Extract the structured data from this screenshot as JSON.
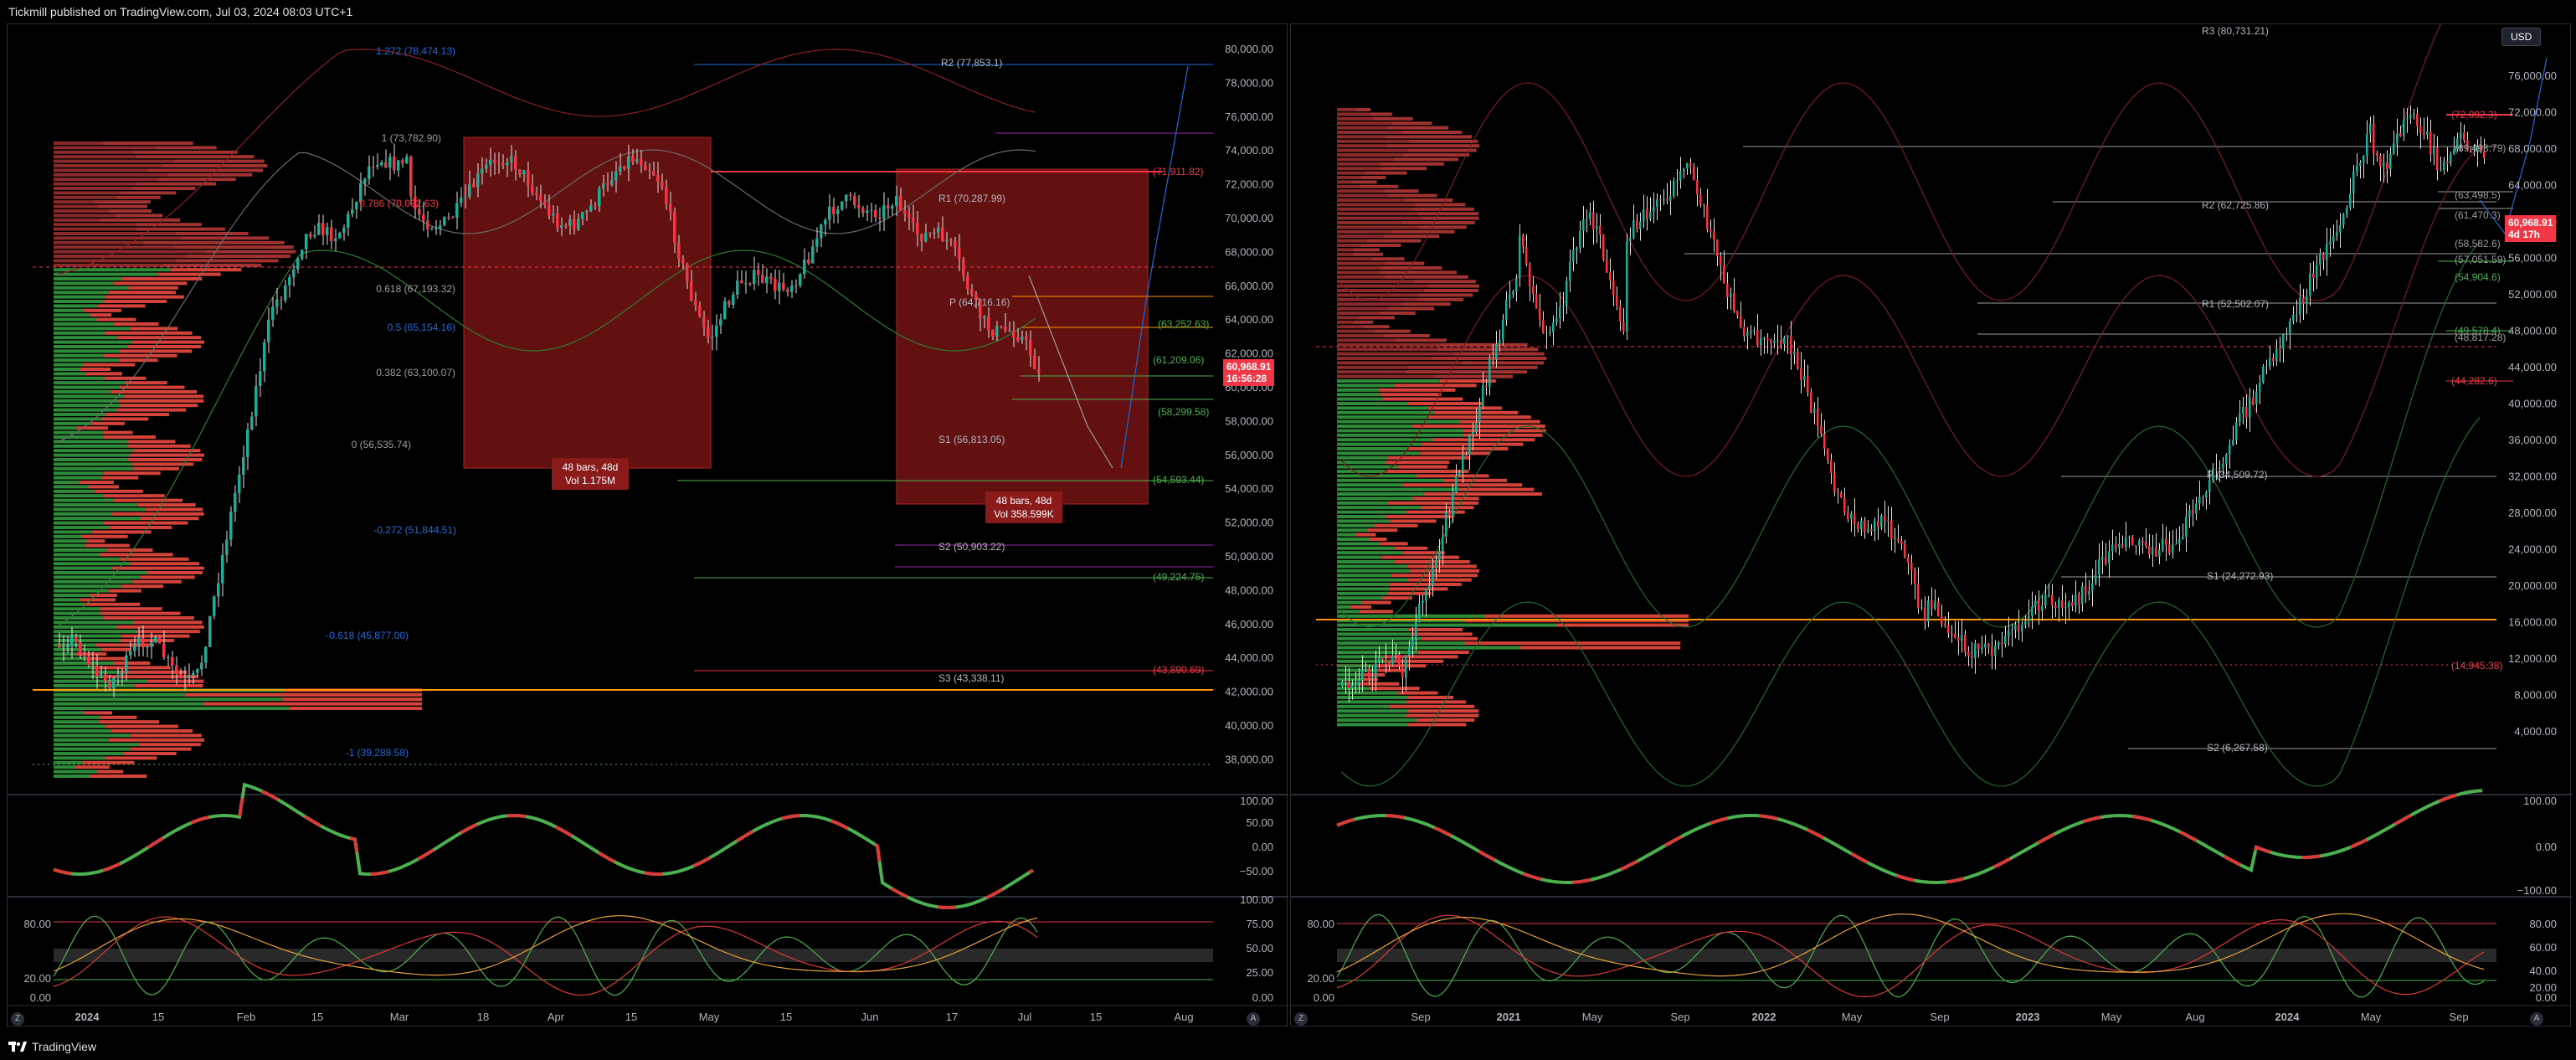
{
  "header": {
    "published": "Tickmill published on TradingView.com, Jul 03, 2024 08:03 UTC+1"
  },
  "footer": {
    "brand": "TradingView"
  },
  "colors": {
    "up": "#22ab94",
    "down": "#f23645",
    "bg": "#000000",
    "grid": "#2a2e39"
  },
  "left_panel": {
    "price_axis": [
      "80,000.00",
      "78,000.00",
      "76,000.00",
      "74,000.00",
      "72,000.00",
      "70,000.00",
      "68,000.00",
      "66,000.00",
      "64,000.00",
      "62,000.00",
      "60,000.00",
      "58,000.00",
      "56,000.00",
      "54,000.00",
      "52,000.00",
      "50,000.00",
      "48,000.00",
      "46,000.00",
      "44,000.00",
      "42,000.00",
      "40,000.00",
      "38,000.00"
    ],
    "last_price": "60,968.91",
    "countdown": "16:56:28",
    "pivots": [
      {
        "label": "R2 (77,853.1)"
      },
      {
        "label": "R1 (70,287.99)"
      },
      {
        "label": "P (64,716.16)"
      },
      {
        "label": "S1 (56,813.05)"
      },
      {
        "label": "S2 (50,903.22)"
      },
      {
        "label": "S3 (43,338.11)"
      }
    ],
    "right_levels": [
      "(71,911.82)",
      "(63,252.63)",
      "(61,209.06)",
      "(58,299.58)",
      "(54,593.44)",
      "(49,224.75)",
      "(43,890.69)"
    ],
    "fib_levels": [
      "1.272 (78,474.13)",
      "1 (73,782.90)",
      "0.786 (70,092.63)",
      "0.618 (67,193.32)",
      "0.5 (65,154.16)",
      "0.382 (63,100.07)",
      "0 (56,535.74)",
      "-0.272 (51,844.51)",
      "-0.618 (45,877.00)",
      "-1 (39,288.58)"
    ],
    "box1": {
      "line1": "48 bars, 48d",
      "line2": "Vol 1.175M"
    },
    "box2": {
      "line1": "48 bars, 48d",
      "line2": "Vol 358.599K"
    },
    "osc1_axis": [
      "100.00",
      "50.00",
      "0.00",
      "−50.00"
    ],
    "osc2_axis": [
      "100.00",
      "75.00",
      "50.00",
      "25.00",
      "0.00"
    ],
    "osc2_left": [
      "80.00",
      "20.00",
      "0.00"
    ],
    "time_axis": [
      "2024",
      "15",
      "Feb",
      "15",
      "Mar",
      "18",
      "Apr",
      "15",
      "May",
      "15",
      "Jun",
      "17",
      "Jul",
      "15",
      "Aug"
    ]
  },
  "right_panel": {
    "currency": "USD",
    "price_axis": [
      "76,000.00",
      "72,000.00",
      "68,000.00",
      "64,000.00",
      "60,000.00",
      "56,000.00",
      "52,000.00",
      "48,000.00",
      "44,000.00",
      "40,000.00",
      "36,000.00",
      "32,000.00",
      "28,000.00",
      "24,000.00",
      "20,000.00",
      "16,000.00",
      "12,000.00",
      "8,000.00",
      "4,000.00"
    ],
    "last_price": "60,968.91",
    "countdown": "4d 17h",
    "pivots": [
      {
        "label": "R3 (80,731.21)"
      },
      {
        "label": "R2 (62,725.86)"
      },
      {
        "label": "R1 (52,502.07)"
      },
      {
        "label": "P (34,509.72)"
      },
      {
        "label": "S1 (24,272.93)"
      },
      {
        "label": "S2 (6,267.58)"
      }
    ],
    "right_levels": [
      "(72,092.3)",
      "(69,498.79)",
      "(63,498.5)",
      "(61,470.3)",
      "(58,582.6)",
      "(57,051.59)",
      "(54,904.6)",
      "(49,578.4)",
      "(48,817.28)",
      "(44,282.6)",
      "(14,945.38)"
    ],
    "osc1_axis": [
      "100.00",
      "0.00",
      "−100.00"
    ],
    "osc2_axis": [
      "80.00",
      "60.00",
      "40.00",
      "20.00",
      "0.00"
    ],
    "osc2_left": [
      "80.00",
      "20.00",
      "0.00"
    ],
    "time_axis": [
      "Sep",
      "2021",
      "May",
      "Sep",
      "2022",
      "May",
      "Sep",
      "2023",
      "May",
      "Aug",
      "2024",
      "May",
      "Sep"
    ]
  }
}
